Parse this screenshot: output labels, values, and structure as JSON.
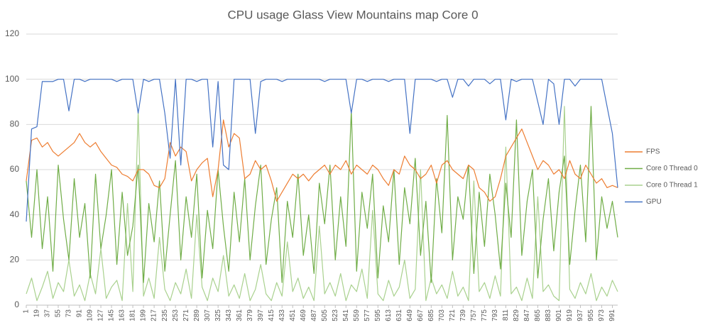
{
  "chart_data": {
    "type": "line",
    "title": "CPU usage Glass View Mountains map Core 0",
    "x": [
      1,
      10,
      19,
      28,
      37,
      46,
      55,
      64,
      73,
      82,
      91,
      100,
      109,
      118,
      127,
      136,
      145,
      154,
      163,
      172,
      181,
      190,
      199,
      208,
      217,
      226,
      235,
      244,
      253,
      262,
      271,
      280,
      289,
      298,
      307,
      316,
      325,
      334,
      343,
      352,
      361,
      370,
      379,
      388,
      397,
      406,
      415,
      424,
      433,
      442,
      451,
      460,
      469,
      478,
      487,
      496,
      505,
      514,
      523,
      532,
      541,
      550,
      559,
      568,
      577,
      586,
      595,
      604,
      613,
      622,
      631,
      640,
      649,
      658,
      667,
      676,
      685,
      694,
      703,
      712,
      721,
      730,
      739,
      748,
      757,
      766,
      775,
      784,
      793,
      802,
      811,
      820,
      829,
      838,
      847,
      856,
      865,
      874,
      883,
      892,
      901,
      910,
      919,
      928,
      937,
      946,
      955,
      964,
      973,
      982,
      991,
      1000
    ],
    "series": [
      {
        "name": "FPS",
        "color": "#ed7d31",
        "values": [
          55,
          73,
          74,
          70,
          72,
          68,
          66,
          68,
          70,
          72,
          76,
          72,
          70,
          72,
          68,
          65,
          62,
          61,
          58,
          57,
          55,
          60,
          60,
          58,
          53,
          52,
          56,
          72,
          66,
          70,
          68,
          55,
          60,
          63,
          65,
          48,
          60,
          82,
          70,
          76,
          74,
          56,
          58,
          64,
          60,
          62,
          55,
          46,
          50,
          54,
          58,
          56,
          58,
          55,
          58,
          60,
          62,
          58,
          62,
          60,
          64,
          58,
          62,
          60,
          58,
          62,
          60,
          56,
          53,
          60,
          58,
          66,
          62,
          60,
          56,
          58,
          62,
          54,
          62,
          64,
          60,
          58,
          56,
          62,
          60,
          52,
          50,
          46,
          48,
          56,
          66,
          70,
          74,
          78,
          72,
          66,
          60,
          64,
          62,
          58,
          60,
          56,
          64,
          58,
          56,
          62,
          58,
          54,
          56,
          52,
          53,
          52
        ]
      },
      {
        "name": "Core 0 Thread 0",
        "color": "#70ad47",
        "values": [
          55,
          30,
          60,
          25,
          48,
          15,
          62,
          38,
          20,
          56,
          30,
          45,
          12,
          58,
          25,
          40,
          60,
          18,
          50,
          22,
          35,
          62,
          10,
          45,
          28,
          55,
          15,
          40,
          64,
          20,
          48,
          30,
          58,
          12,
          42,
          25,
          60,
          35,
          15,
          50,
          28,
          56,
          20,
          44,
          62,
          18,
          38,
          52,
          10,
          46,
          30,
          58,
          22,
          40,
          14,
          54,
          36,
          62,
          20,
          48,
          26,
          86,
          15,
          50,
          34,
          58,
          12,
          44,
          28,
          60,
          18,
          52,
          36,
          65,
          22,
          46,
          10,
          56,
          32,
          84,
          20,
          48,
          38,
          62,
          14,
          50,
          26,
          58,
          40,
          16,
          54,
          30,
          82,
          22,
          46,
          60,
          12,
          38,
          56,
          24,
          50,
          66,
          18,
          42,
          62,
          28,
          88,
          20,
          48,
          34,
          46,
          30
        ]
      },
      {
        "name": "Core 0 Thread 1",
        "color": "#a9d18e",
        "values": [
          5,
          12,
          2,
          8,
          15,
          3,
          10,
          6,
          20,
          4,
          9,
          2,
          14,
          5,
          25,
          3,
          8,
          11,
          2,
          45,
          6,
          86,
          4,
          12,
          3,
          30,
          7,
          2,
          10,
          5,
          16,
          3,
          40,
          8,
          2,
          12,
          6,
          22,
          4,
          9,
          3,
          14,
          2,
          7,
          18,
          5,
          2,
          10,
          4,
          28,
          6,
          12,
          3,
          8,
          2,
          35,
          5,
          10,
          4,
          14,
          2,
          9,
          6,
          16,
          3,
          42,
          5,
          2,
          11,
          4,
          8,
          20,
          3,
          7,
          60,
          2,
          12,
          5,
          9,
          3,
          15,
          4,
          8,
          2,
          55,
          6,
          10,
          3,
          13,
          4,
          70,
          5,
          8,
          2,
          12,
          3,
          48,
          6,
          9,
          4,
          2,
          88,
          7,
          3,
          10,
          5,
          14,
          2,
          8,
          4,
          11,
          6
        ]
      },
      {
        "name": "GPU",
        "color": "#4472c4",
        "values": [
          37,
          78,
          79,
          99,
          99,
          99,
          100,
          100,
          86,
          100,
          100,
          99,
          100,
          100,
          100,
          100,
          100,
          99,
          100,
          100,
          100,
          85,
          100,
          99,
          100,
          100,
          85,
          65,
          100,
          62,
          100,
          100,
          99,
          100,
          100,
          70,
          99,
          62,
          60,
          100,
          100,
          100,
          100,
          76,
          99,
          100,
          100,
          100,
          99,
          100,
          100,
          100,
          100,
          100,
          100,
          100,
          99,
          100,
          100,
          100,
          100,
          85,
          100,
          100,
          99,
          100,
          100,
          100,
          99,
          100,
          100,
          100,
          76,
          100,
          100,
          100,
          100,
          99,
          100,
          100,
          92,
          100,
          100,
          97,
          100,
          100,
          100,
          98,
          100,
          100,
          82,
          100,
          99,
          100,
          100,
          100,
          90,
          80,
          100,
          98,
          80,
          100,
          100,
          97,
          100,
          100,
          100,
          100,
          100,
          88,
          76,
          52
        ]
      }
    ],
    "xlim": [
      1,
      1000
    ],
    "xticks": [
      1,
      19,
      37,
      55,
      73,
      91,
      109,
      127,
      145,
      163,
      181,
      199,
      217,
      235,
      253,
      271,
      289,
      307,
      325,
      343,
      361,
      379,
      397,
      415,
      433,
      451,
      469,
      487,
      505,
      523,
      541,
      559,
      577,
      595,
      613,
      631,
      649,
      667,
      685,
      703,
      721,
      739,
      757,
      775,
      793,
      811,
      829,
      847,
      865,
      883,
      901,
      919,
      937,
      955,
      973,
      991
    ],
    "ylim": [
      0,
      120
    ],
    "yticks": [
      0,
      20,
      40,
      60,
      80,
      100,
      120
    ],
    "grid": true,
    "legend": "right"
  }
}
